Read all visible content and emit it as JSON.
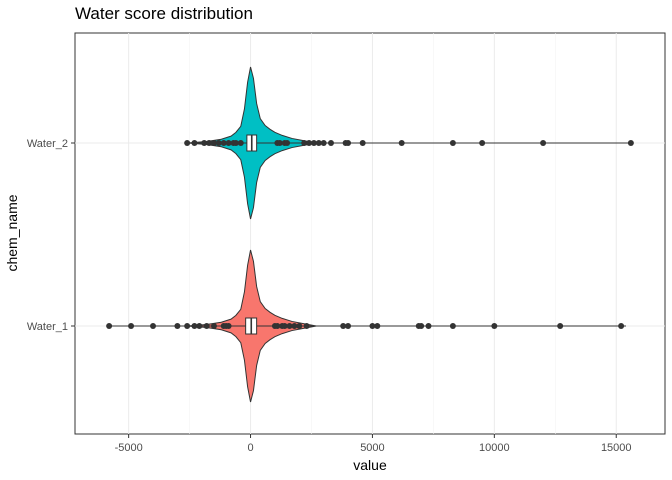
{
  "chart_data": {
    "type": "violin",
    "title": "Water score distribution",
    "xlabel": "value",
    "ylabel": "chem_name",
    "xlim": [
      -7200,
      17000
    ],
    "x_ticks": [
      -5000,
      0,
      5000,
      10000,
      15000
    ],
    "x_tick_labels": [
      "-5000",
      "0",
      "5000",
      "10000",
      "15000"
    ],
    "categories": [
      "Water_1",
      "Water_2"
    ],
    "grid": true,
    "legend": "none",
    "series": [
      {
        "category": "Water_1",
        "color": "#F8766D",
        "violin_profile": [
          [
            -2600,
            0.0
          ],
          [
            -1800,
            0.02
          ],
          [
            -1200,
            0.05
          ],
          [
            -800,
            0.09
          ],
          [
            -600,
            0.14
          ],
          [
            -400,
            0.22
          ],
          [
            -250,
            0.45
          ],
          [
            -120,
            0.8
          ],
          [
            0,
            1.0
          ],
          [
            120,
            0.85
          ],
          [
            250,
            0.52
          ],
          [
            400,
            0.32
          ],
          [
            600,
            0.23
          ],
          [
            800,
            0.18
          ],
          [
            1000,
            0.14
          ],
          [
            1300,
            0.1
          ],
          [
            1700,
            0.06
          ],
          [
            2200,
            0.03
          ],
          [
            2700,
            0.0
          ]
        ],
        "box": {
          "q1": -200,
          "median": 30,
          "q3": 250,
          "whisker_low": -5800,
          "whisker_high": 15400
        },
        "outliers": [
          -5800,
          -4900,
          -4000,
          -3000,
          -2600,
          -2300,
          -2100,
          -1800,
          -1500,
          -1100,
          -1000,
          -900,
          1000,
          1100,
          1300,
          1400,
          1600,
          1800,
          2000,
          2300,
          3800,
          4000,
          5000,
          5200,
          6900,
          7000,
          7300,
          8300,
          10000,
          12700,
          15200
        ]
      },
      {
        "category": "Water_2",
        "color": "#00BFC4",
        "violin_profile": [
          [
            -2600,
            0.0
          ],
          [
            -1800,
            0.02
          ],
          [
            -1200,
            0.05
          ],
          [
            -800,
            0.09
          ],
          [
            -600,
            0.14
          ],
          [
            -400,
            0.22
          ],
          [
            -250,
            0.45
          ],
          [
            -120,
            0.8
          ],
          [
            0,
            1.0
          ],
          [
            120,
            0.85
          ],
          [
            250,
            0.52
          ],
          [
            400,
            0.32
          ],
          [
            600,
            0.23
          ],
          [
            800,
            0.18
          ],
          [
            1000,
            0.14
          ],
          [
            1300,
            0.1
          ],
          [
            1700,
            0.06
          ],
          [
            2200,
            0.03
          ],
          [
            2700,
            0.0
          ]
        ],
        "box": {
          "q1": -150,
          "median": 50,
          "q3": 250,
          "whisker_low": -2700,
          "whisker_high": 15700
        },
        "outliers": [
          -2600,
          -2300,
          -1900,
          -1700,
          -1500,
          -1300,
          -1100,
          -900,
          -700,
          -600,
          -400,
          1100,
          1200,
          1400,
          1500,
          2200,
          2400,
          2600,
          2800,
          3000,
          3300,
          3900,
          4000,
          4600,
          6200,
          8300,
          9500,
          12000,
          15600
        ]
      }
    ]
  }
}
